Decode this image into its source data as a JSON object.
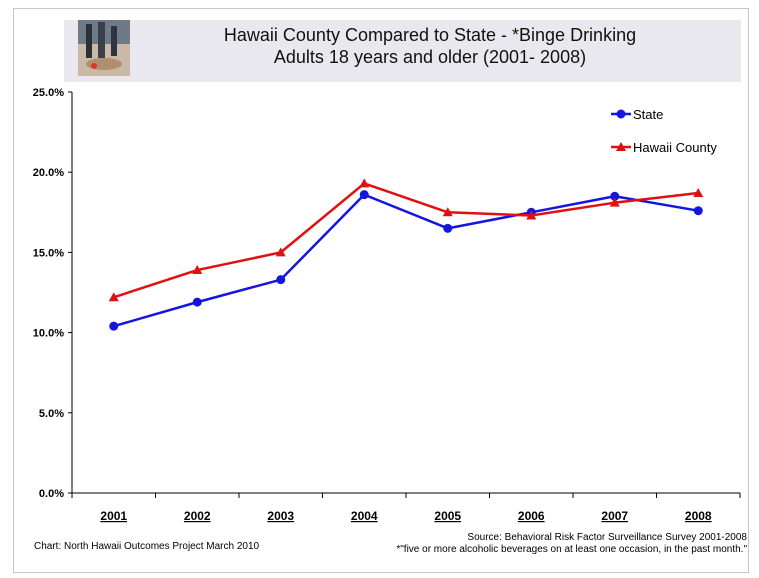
{
  "title": {
    "line1": "Hawaii County Compared to State - *Binge Drinking",
    "line2": "Adults 18 years and older (2001- 2008)"
  },
  "footer": {
    "credit": "Chart: North Hawaii Outcomes Project March 2010",
    "source": "Source:  Behavioral Risk Factor Surveillance Survey 2001-2008",
    "note": "*\"five or more alcoholic beverages on at least one occasion, in the past month.\""
  },
  "chart_data": {
    "type": "line",
    "title": "Hawaii County Compared to State - *Binge Drinking Adults 18 years and older (2001- 2008)",
    "categories": [
      "2001",
      "2002",
      "2003",
      "2004",
      "2005",
      "2006",
      "2007",
      "2008"
    ],
    "y_ticks": [
      "0.0%",
      "5.0%",
      "10.0%",
      "15.0%",
      "20.0%",
      "25.0%"
    ],
    "ylim": [
      0,
      25
    ],
    "y_unit": "%",
    "legend_position": "top-right",
    "grid": false,
    "series": [
      {
        "name": "State",
        "color": "#1515e0",
        "marker": "circle",
        "values": [
          10.4,
          11.9,
          13.3,
          18.6,
          16.5,
          17.5,
          18.5,
          17.6
        ]
      },
      {
        "name": "Hawaii County",
        "color": "#e01010",
        "marker": "triangle",
        "values": [
          12.2,
          13.9,
          15.0,
          19.3,
          17.5,
          17.3,
          18.1,
          18.7
        ]
      }
    ]
  }
}
